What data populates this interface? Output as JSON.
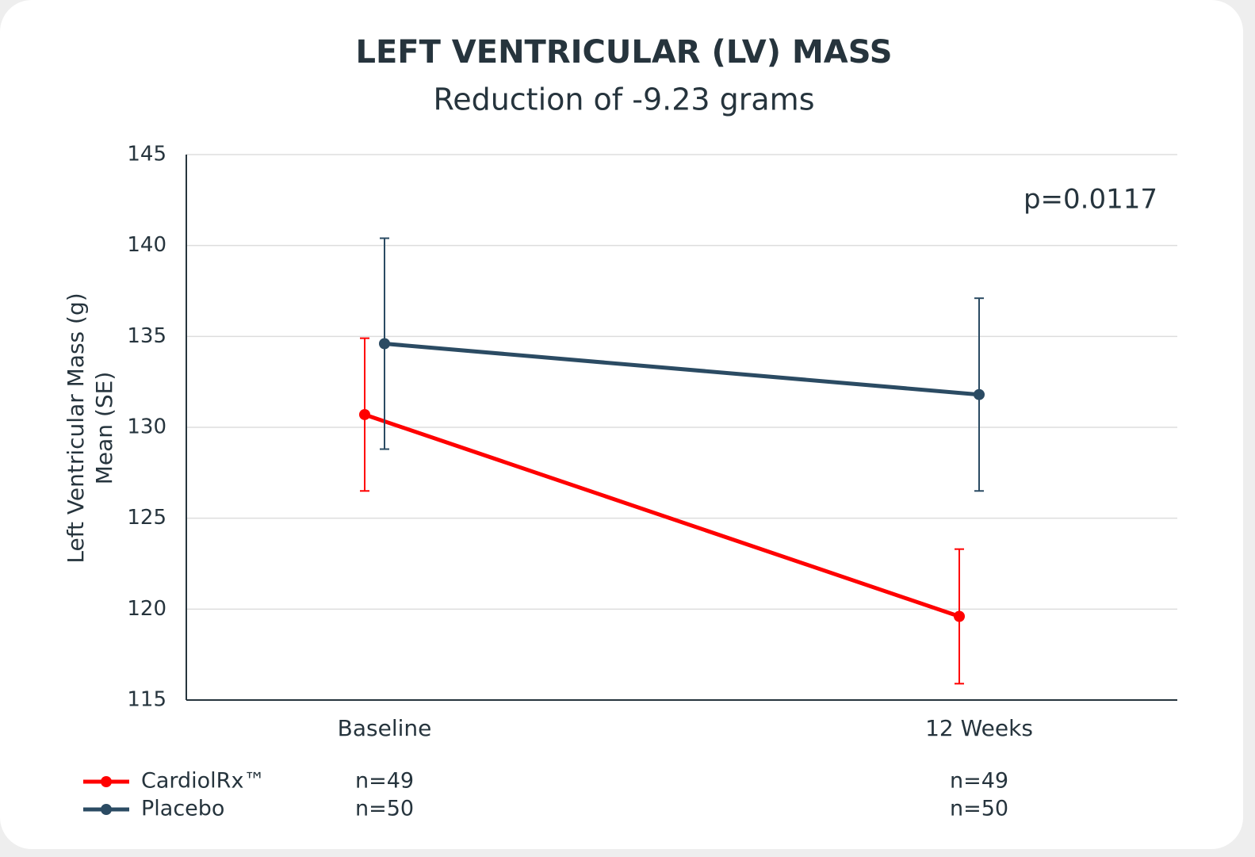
{
  "chart_data": {
    "type": "line",
    "title": "LEFT VENTRICULAR (LV) MASS",
    "subtitle": "Reduction of -9.23 grams",
    "y_label_lines": [
      "Left Ventricular Mass (g)",
      "Mean (SE)"
    ],
    "annotation": "p=0.0117",
    "categories": [
      "Baseline",
      "12 Weeks"
    ],
    "series": [
      {
        "name": "CardiolRx™",
        "color": "#ff0000",
        "values": [
          130.7,
          119.6
        ],
        "errors": [
          4.2,
          3.7
        ],
        "n_labels": [
          "n=49",
          "n=49"
        ]
      },
      {
        "name": "Placebo",
        "color": "#2b4b63",
        "values": [
          134.6,
          131.8
        ],
        "errors": [
          5.8,
          5.3
        ],
        "n_labels": [
          "n=50",
          "n=50"
        ]
      }
    ],
    "ylim": [
      115,
      145
    ],
    "yticks": [
      115,
      120,
      125,
      130,
      135,
      140,
      145
    ],
    "grid": true,
    "legend": "bottom-left"
  }
}
